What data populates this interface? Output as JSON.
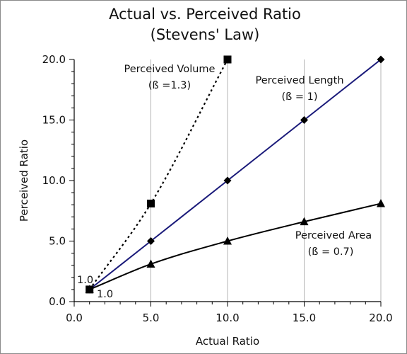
{
  "chart_data": {
    "type": "line",
    "title": "Actual vs. Perceived Ratio",
    "subtitle": "(Stevens' Law)",
    "xlabel": "Actual Ratio",
    "ylabel": "Perceived Ratio",
    "xlim": [
      0,
      20
    ],
    "ylim": [
      0,
      20
    ],
    "xticks": [
      "0.0",
      "5.0",
      "10.0",
      "15.0",
      "20.0"
    ],
    "yticks": [
      "0.0",
      "5.0",
      "10.0",
      "15.0",
      "20.0"
    ],
    "grid": "vertical",
    "legend": "none",
    "series": [
      {
        "name": "Perceived Volume",
        "exponent_label": "(ß =1.3)",
        "marker": "square",
        "line_style": "dotted",
        "color": "#000000",
        "x": [
          1,
          5,
          10
        ],
        "y": [
          1,
          8.1,
          20
        ]
      },
      {
        "name": "Perceived Length",
        "exponent_label": "(ß = 1)",
        "marker": "diamond",
        "line_style": "solid",
        "color": "#1a1a7a",
        "x": [
          1,
          5,
          10,
          15,
          20
        ],
        "y": [
          1,
          5,
          10,
          15,
          20
        ]
      },
      {
        "name": "Perceived Area",
        "exponent_label": "(ß = 0.7)",
        "marker": "triangle",
        "line_style": "solid",
        "color": "#000000",
        "x": [
          1,
          5,
          10,
          15,
          20
        ],
        "y": [
          1,
          3.1,
          5,
          6.6,
          8.1
        ]
      }
    ],
    "annotations": [
      "1.0",
      "1.0"
    ]
  }
}
